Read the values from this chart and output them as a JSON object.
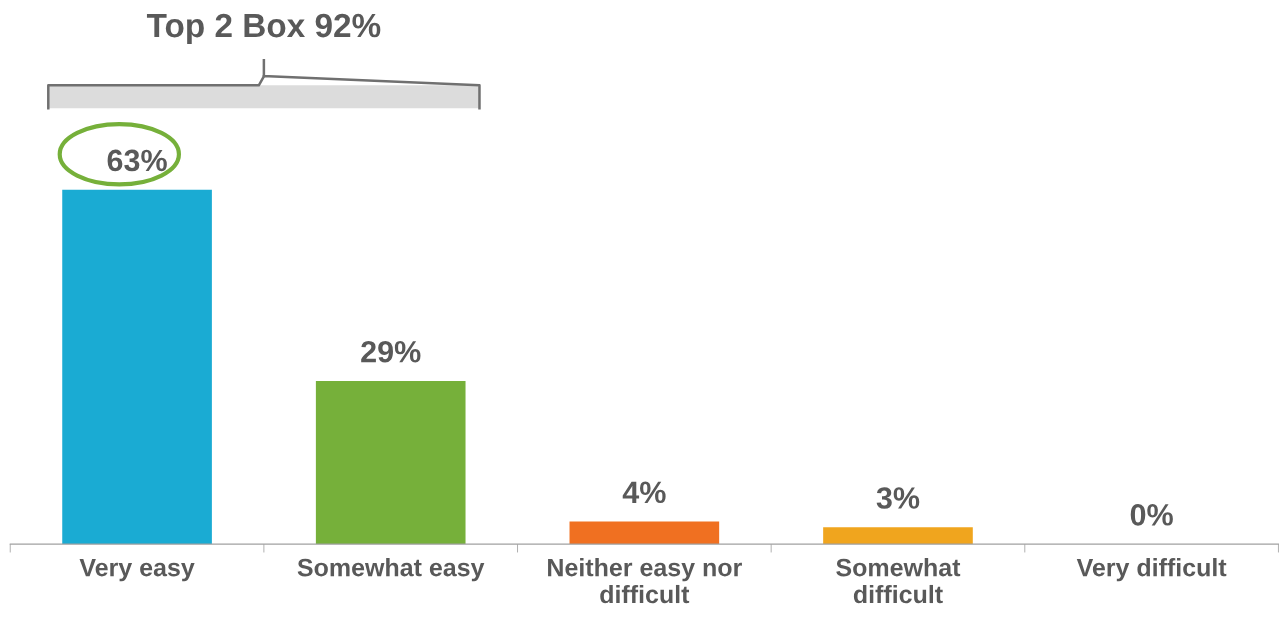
{
  "chart_data": {
    "type": "bar",
    "categories": [
      "Very easy",
      "Somewhat easy",
      "Neither easy nor\ndifficult",
      "Somewhat\ndifficult",
      "Very difficult"
    ],
    "values": [
      63,
      29,
      4,
      3,
      0
    ],
    "colors": [
      "#1aabd3",
      "#76b03a",
      "#f07021",
      "#f0a51e",
      "#f0a51e"
    ],
    "value_labels": [
      "63%",
      "29%",
      "4%",
      "3%",
      "0%"
    ],
    "tick_labels": "x",
    "annotations": [
      "Top 2 Box 92%"
    ]
  }
}
